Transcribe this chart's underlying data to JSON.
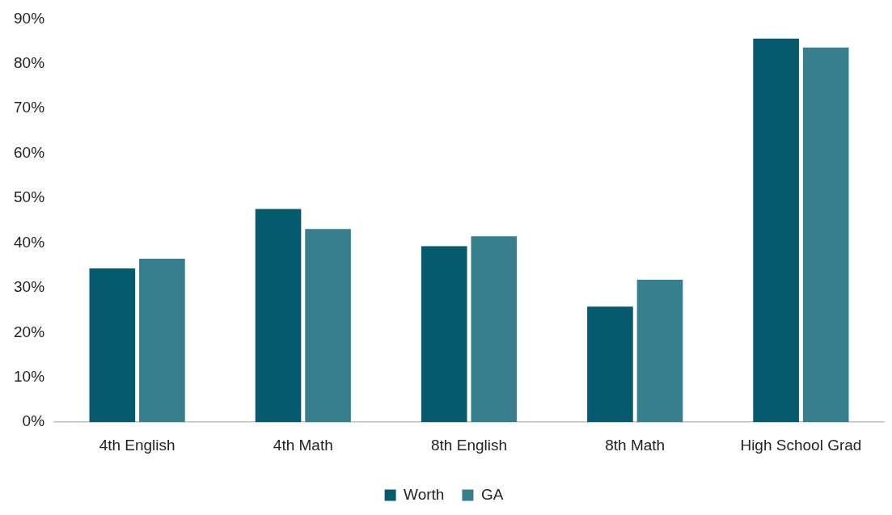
{
  "chart_data": {
    "type": "bar",
    "categories": [
      "4th English",
      "4th Math",
      "8th English",
      "8th Math",
      "High School Grad"
    ],
    "series": [
      {
        "name": "Worth",
        "color": "#065a6e",
        "values": [
          34.3,
          47.6,
          39.3,
          25.8,
          85.6
        ]
      },
      {
        "name": "GA",
        "color": "#387f8e",
        "values": [
          36.5,
          43.1,
          41.5,
          31.8,
          83.6
        ]
      }
    ],
    "ylim": [
      0,
      90
    ],
    "yticks": [
      {
        "value": 0,
        "label": "0%"
      },
      {
        "value": 10,
        "label": "10%"
      },
      {
        "value": 20,
        "label": "20%"
      },
      {
        "value": 30,
        "label": "30%"
      },
      {
        "value": 40,
        "label": "40%"
      },
      {
        "value": 50,
        "label": "50%"
      },
      {
        "value": 60,
        "label": "60%"
      },
      {
        "value": 70,
        "label": "70%"
      },
      {
        "value": 80,
        "label": "80%"
      },
      {
        "value": 90,
        "label": "90%"
      }
    ],
    "grid": false,
    "legend": "bottom"
  }
}
